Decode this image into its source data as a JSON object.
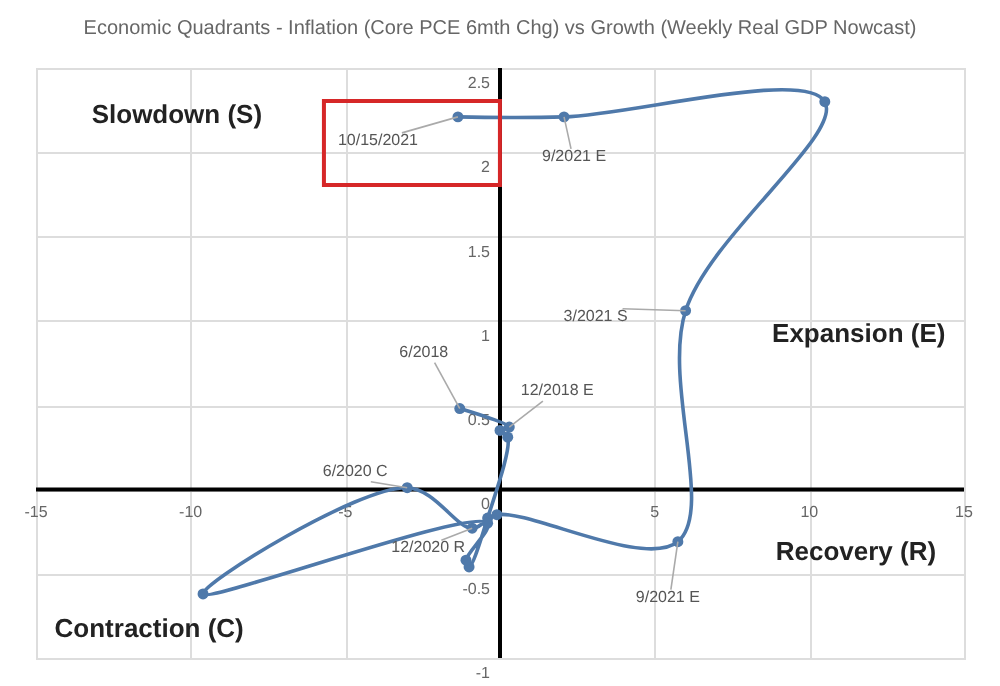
{
  "chart_data": {
    "type": "line",
    "title": "Economic Quadrants - Inflation (Core PCE 6mth Chg) vs Growth (Weekly Real GDP Nowcast)",
    "series": [
      {
        "color": "#4f79aa",
        "x": [
          -1.3,
          0.3,
          0.0,
          0.25,
          -0.4,
          -1.0,
          -1.1,
          -0.4,
          -9.6,
          -3.0,
          -0.9,
          -0.1,
          5.75,
          6.0,
          10.5,
          2.07,
          -1.36
        ],
        "values": [
          0.48,
          0.37,
          0.35,
          0.31,
          -0.17,
          -0.46,
          -0.42,
          -0.2,
          -0.62,
          0.01,
          -0.23,
          -0.15,
          -0.31,
          1.06,
          2.3,
          2.21,
          2.21
        ]
      }
    ],
    "xlim": [
      -15,
      15
    ],
    "ylim": [
      -1,
      2.5
    ],
    "xticks": [
      -15,
      -10,
      -5,
      {
        "value": 0,
        "label": null
      },
      5,
      10,
      15
    ],
    "yticks": [
      -1,
      -0.5,
      0,
      0.5,
      1,
      1.5,
      2,
      2.5
    ],
    "grid": true,
    "marker": "circle",
    "line_style": "solid",
    "annotations": [
      {
        "text": "10/15/2021",
        "x": -1.36,
        "y": 2.21
      },
      {
        "text": "9/2021 E",
        "x": 2.07,
        "y": 2.21
      },
      {
        "text": "3/2021 S",
        "x": 6.0,
        "y": 1.06
      },
      {
        "text": "6/2018",
        "x": -1.3,
        "y": 0.48
      },
      {
        "text": "12/2018 E",
        "x": 0.3,
        "y": 0.37
      },
      {
        "text": "6/2020 C",
        "x": -3.0,
        "y": 0.01
      },
      {
        "text": "12/2020 R",
        "x": -0.9,
        "y": -0.23
      },
      {
        "text": "9/2021 E",
        "x": 5.75,
        "y": -0.31
      },
      "Slowdown (S)",
      "Expansion (E)",
      "Contraction (C)",
      "Recovery (R)"
    ]
  }
}
